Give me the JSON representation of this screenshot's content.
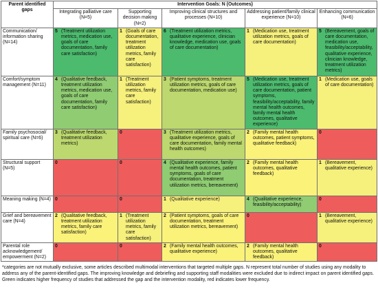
{
  "table": {
    "corner_header": "Parent identified gaps",
    "group_header": "Intervention Goals: N (Outcomes)",
    "columns": [
      "Integrating palliative care (N=5)",
      "Supporting decision making (N=2)",
      "Improving clinical structures and processes (N=10)",
      "Addressing patient/family clinical experience (N=10)",
      "Enhancing communication (N=6)"
    ],
    "rows": [
      {
        "gap": "Communication/ information sharing (N=14)",
        "cells": [
          {
            "n": "5",
            "outcomes": "(Treatment utilization metrics, medication use, goals of care documentation, family care satisfaction)",
            "color": "#4cbb6e"
          },
          {
            "n": "1",
            "outcomes": "(Goals of care documentation, treatment utilization metrics, family care satisfaction)",
            "color": "#f6f07c"
          },
          {
            "n": "6",
            "outcomes": "(Treatment utilization metrics, qualitative experience, clinician knowledge, medication use, goals of care documentation)",
            "color": "#4cbb6e"
          },
          {
            "n": "1",
            "outcomes": "(Medication use, treatment utilization metrics, goals of care documentation)",
            "color": "#f6f07c"
          },
          {
            "n": "5",
            "outcomes": "(Bereavement, goals of care documentation, medication use, feasibility/acceptability, qualitative experience, clinician knowledge, treatment utilization metrics)",
            "color": "#4cbb6e"
          }
        ]
      },
      {
        "gap": "Comfort/symptom management (N=11)",
        "cells": [
          {
            "n": "4",
            "outcomes": "(Qualitative feedback, treatment utilization metrics, medication use, goals of care documentation, family care satisfaction)",
            "color": "#8fcc72"
          },
          {
            "n": "1",
            "outcomes": "(Treatment utilization metrics, family care satisfaction)",
            "color": "#f6f07c"
          },
          {
            "n": "3",
            "outcomes": "(Patient symptoms, treatment utilization metrics, goals of care documentation, medication use)",
            "color": "#bcd86e"
          },
          {
            "n": "5",
            "outcomes": "(Medication use, treatment utilization metrics, goals of care documentation, patient symptoms, feasibility/acceptability, family mental health outcomes, family mental health outcomes, qualitative experience)",
            "color": "#4cbb6e"
          },
          {
            "n": "1",
            "outcomes": "(Medication use, goals of care documentation)",
            "color": "#f6f07c"
          }
        ]
      },
      {
        "gap": "Family psychosocial/ spiritual care (N=6)",
        "cells": [
          {
            "n": "3",
            "outcomes": "(Qualitative feedback, treatment utilization metrics)",
            "color": "#bcd86e"
          },
          {
            "n": "0",
            "outcomes": "",
            "color": "#ef5c5c"
          },
          {
            "n": "3",
            "outcomes": "(Treatment utilization metrics, qualitative experience, goals of care documentation, family mental health outcomes)",
            "color": "#bcd86e"
          },
          {
            "n": "2",
            "outcomes": "(Family mental health outcomes, patient symptoms, qualitative feedback)",
            "color": "#fbf27a"
          },
          {
            "n": "0",
            "outcomes": "",
            "color": "#ef5c5c"
          }
        ]
      },
      {
        "gap": "Structural support (N=5)",
        "cells": [
          {
            "n": "0",
            "outcomes": "",
            "color": "#ef5c5c"
          },
          {
            "n": "0",
            "outcomes": "",
            "color": "#ef5c5c"
          },
          {
            "n": "4",
            "outcomes": "(Qualitative experience, family mental health outcomes, patient symptoms, goals of care documentation, treatment utilization metrics, bereavement)",
            "color": "#8fcc72"
          },
          {
            "n": "2",
            "outcomes": "(Family mental health outcomes, qualitative feedback)",
            "color": "#fbf27a"
          },
          {
            "n": "1",
            "outcomes": "(Bereavement, qualitative experience)",
            "color": "#f6f07c"
          }
        ]
      },
      {
        "gap": "Meaning making (N=4)",
        "cells": [
          {
            "n": "0",
            "outcomes": "",
            "color": "#ef5c5c"
          },
          {
            "n": "0",
            "outcomes": "",
            "color": "#ef5c5c"
          },
          {
            "n": "1",
            "outcomes": "(Qualitative experience)",
            "color": "#f6f07c"
          },
          {
            "n": "4",
            "outcomes": "(Qualitative experience, feasibility/acceptability)",
            "color": "#8fcc72"
          },
          {
            "n": "0",
            "outcomes": "",
            "color": "#ef5c5c"
          }
        ]
      },
      {
        "gap": "Grief and bereavement care (N=4)",
        "cells": [
          {
            "n": "2",
            "outcomes": "(Qualitative feedback, treatment utilization metrics, family care satisfaction)",
            "color": "#fbf27a"
          },
          {
            "n": "1",
            "outcomes": "(Treatment utilization metrics, family care satisfaction)",
            "color": "#f6f07c"
          },
          {
            "n": "2",
            "outcomes": "(Patient symptoms, goals of care documentation, treatment utilization metrics, bereavement)",
            "color": "#fbf27a"
          },
          {
            "n": "0",
            "outcomes": "",
            "color": "#ef5c5c"
          },
          {
            "n": "1",
            "outcomes": "(Bereavement, qualitative experience)",
            "color": "#f6f07c"
          }
        ]
      },
      {
        "gap": "Parental role acknowledgement/ empowerment (N=2)",
        "cells": [
          {
            "n": "0",
            "outcomes": "",
            "color": "#ef5c5c"
          },
          {
            "n": "0",
            "outcomes": "",
            "color": "#ef5c5c"
          },
          {
            "n": "2",
            "outcomes": "(Family mental health outcomes, qualitative experience)",
            "color": "#fbf27a"
          },
          {
            "n": "2",
            "outcomes": "(Family mental health outcomes, qualitative feedback)",
            "color": "#fbf27a"
          },
          {
            "n": "0",
            "outcomes": "",
            "color": "#ef5c5c"
          }
        ]
      }
    ]
  },
  "footnote": "*categories are not mutually exclusive, some articles described multimodal interventions that targeted multiple gaps. N represent total number of studies using any modality to address any of the parent-identified gaps. The improving knowledge and debriefing and supporting staff modalities were excluded due to indirect impact on parent identified gaps. Green indicates higher frequency of studies that addressed the gap and the intervention modality, red indicates lower frequency."
}
